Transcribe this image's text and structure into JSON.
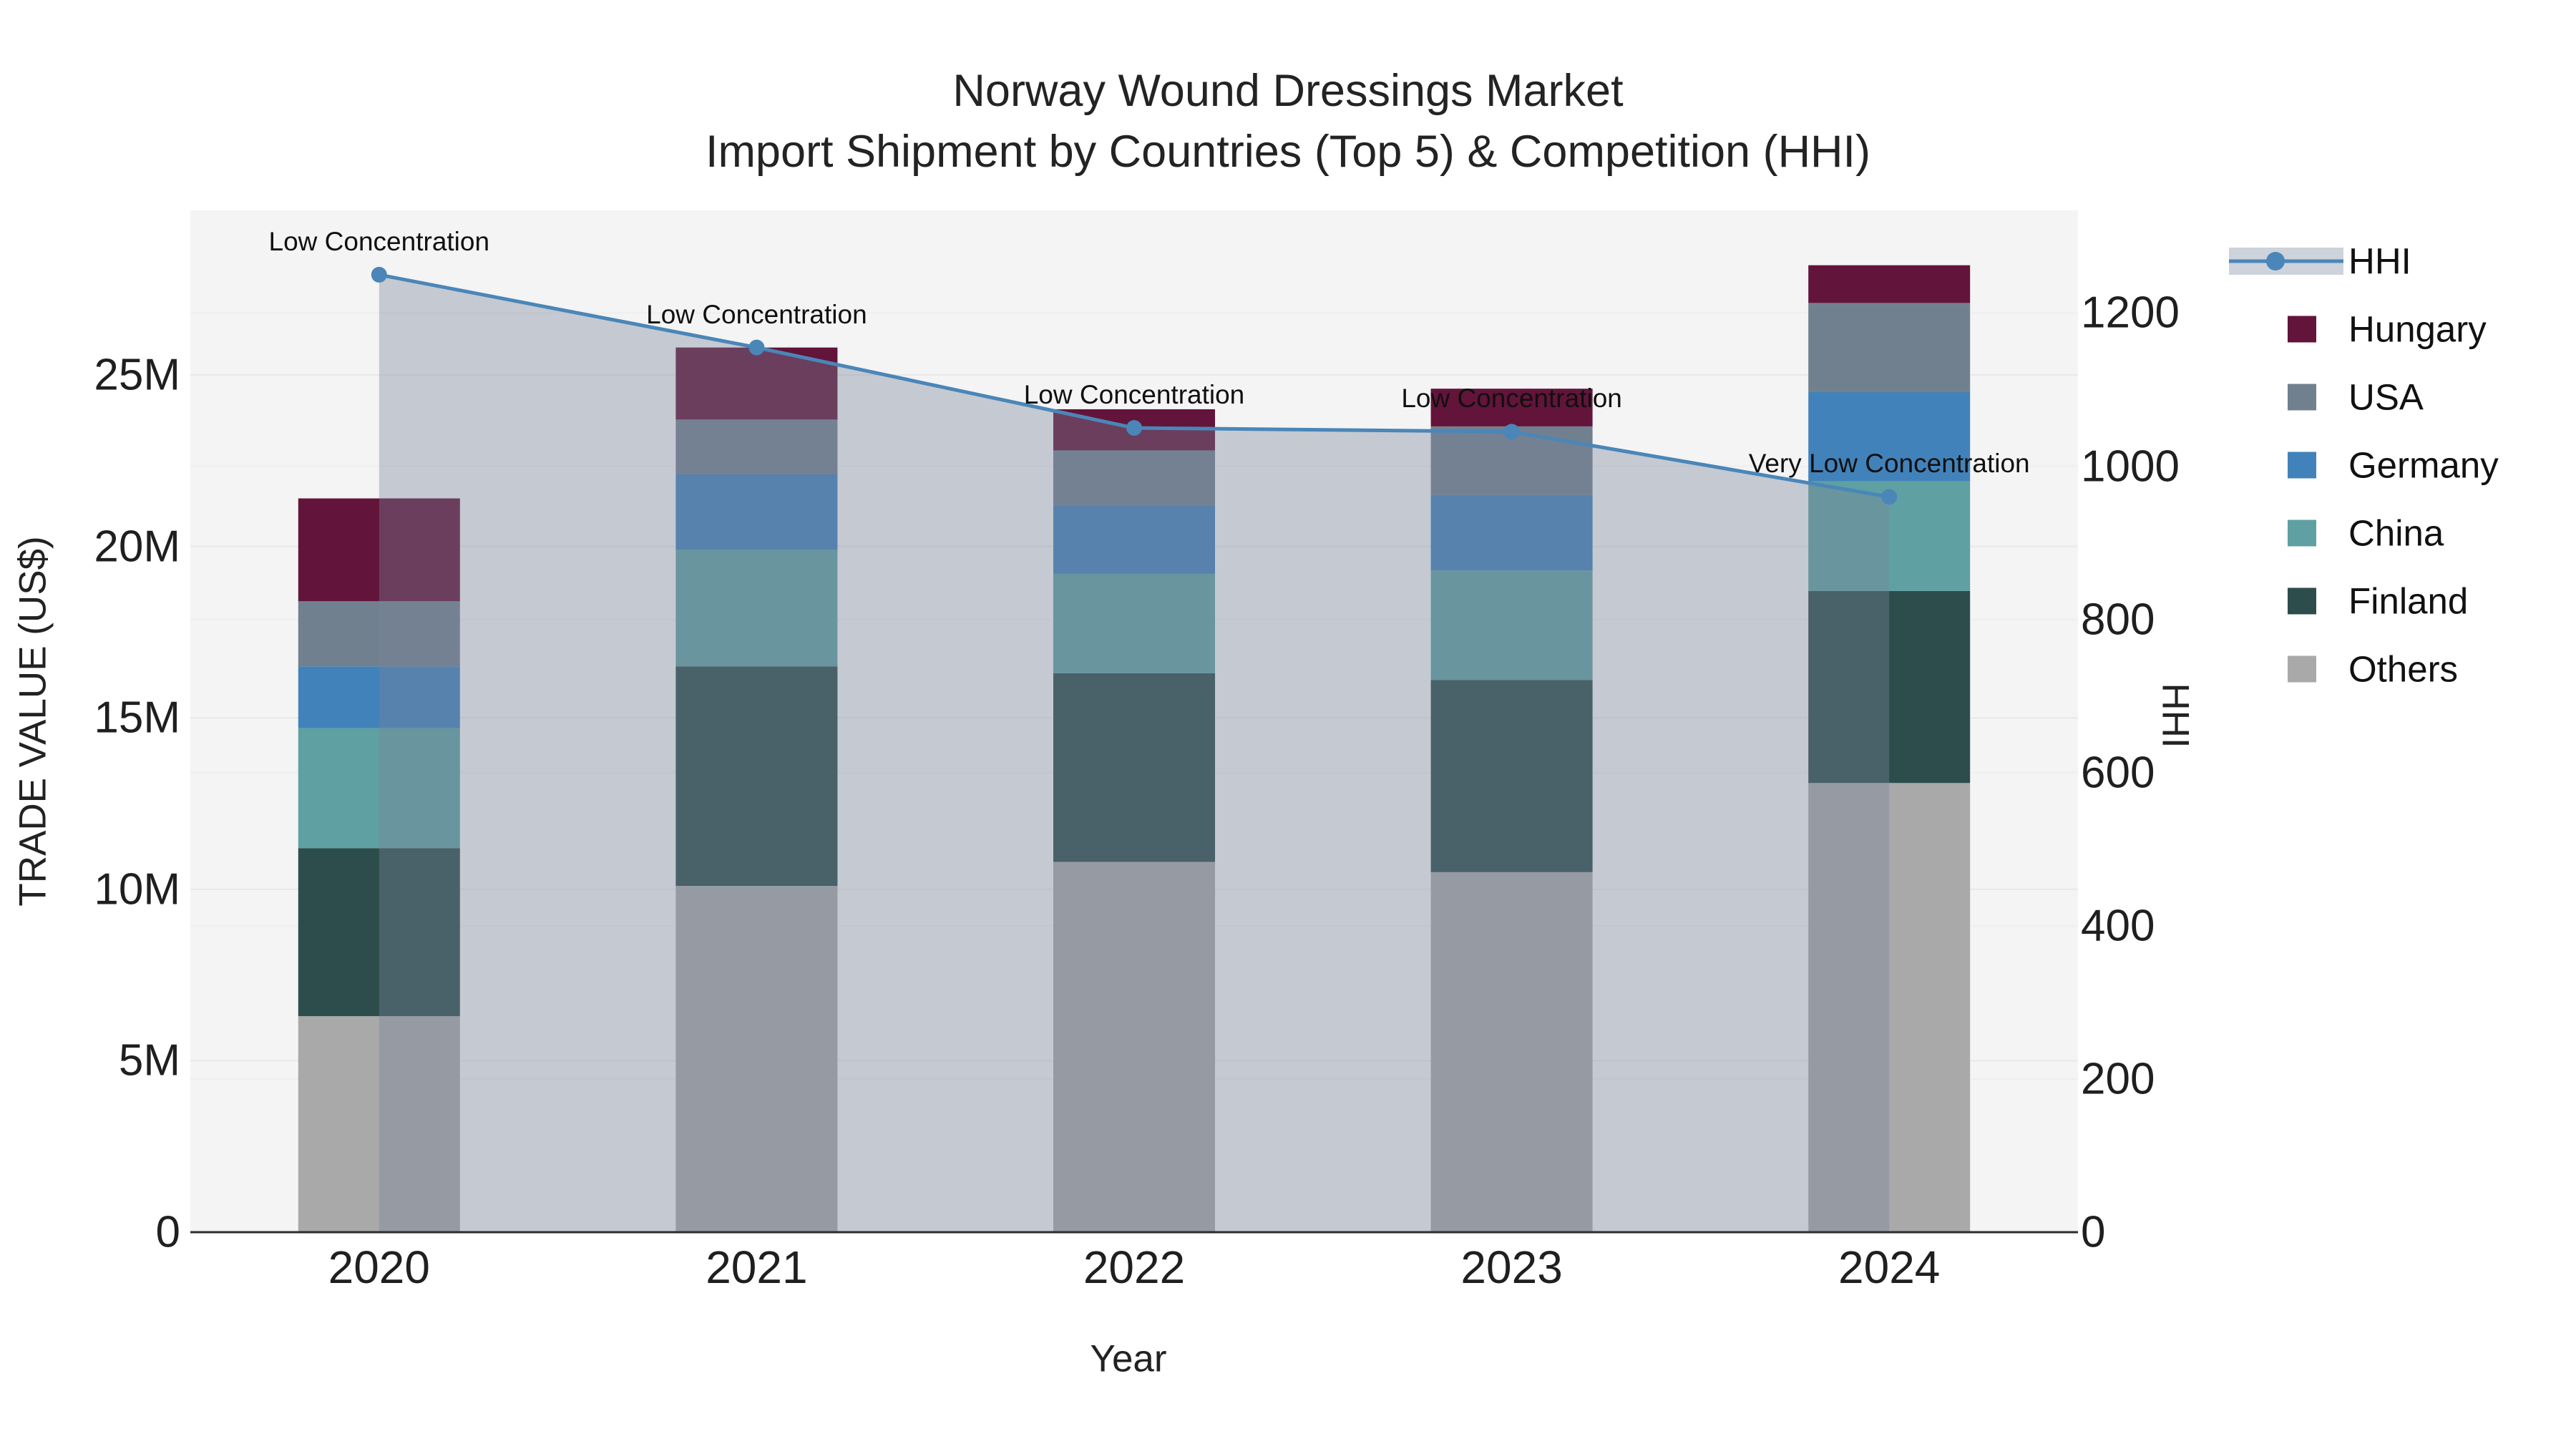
{
  "chart_data": {
    "type": "bar+line",
    "title": "Norway Wound Dressings Market",
    "subtitle": "Import Shipment by Countries (Top 5) & Competition (HHI)",
    "xlabel": "Year",
    "ylabel_left": "TRADE VALUE (US$)",
    "ylabel_right": "HHI",
    "categories": [
      "2020",
      "2021",
      "2022",
      "2023",
      "2024"
    ],
    "value_unit": "Million US$",
    "series": [
      {
        "name": "Others",
        "color": "#a9a9a9",
        "values": [
          6.3,
          10.1,
          10.8,
          10.5,
          13.1
        ]
      },
      {
        "name": "Finland",
        "color": "#2c4d4b",
        "values": [
          4.9,
          6.4,
          5.5,
          5.6,
          5.6
        ]
      },
      {
        "name": "China",
        "color": "#5fa0a2",
        "values": [
          3.5,
          3.4,
          2.9,
          3.2,
          3.2
        ]
      },
      {
        "name": "Germany",
        "color": "#4282ba",
        "values": [
          1.8,
          2.2,
          2.0,
          2.2,
          2.6
        ]
      },
      {
        "name": "USA",
        "color": "#71808f",
        "values": [
          1.9,
          1.6,
          1.6,
          2.0,
          2.6
        ]
      },
      {
        "name": "Hungary",
        "color": "#63143a",
        "values": [
          3.0,
          2.1,
          1.2,
          1.1,
          1.1
        ]
      }
    ],
    "line": {
      "name": "HHI",
      "color": "#4a86b8",
      "area_fill": "rgba(122,132,152,0.38)",
      "values": [
        1250,
        1155,
        1050,
        1045,
        960
      ]
    },
    "annotations": [
      "Low Concentration",
      "Low Concentration",
      "Low Concentration",
      "Low Concentration",
      "Very Low Concentration"
    ],
    "y_left": {
      "ticks": [
        "0",
        "5M",
        "10M",
        "15M",
        "20M",
        "25M"
      ],
      "tick_values": [
        0,
        5,
        10,
        15,
        20,
        25
      ],
      "axis_max": 29.8
    },
    "y_right": {
      "ticks": [
        "0",
        "200",
        "400",
        "600",
        "800",
        "1000",
        "1200"
      ],
      "tick_values": [
        0,
        200,
        400,
        600,
        800,
        1000,
        1200
      ],
      "axis_max": 1334
    },
    "legend": [
      "HHI",
      "Hungary",
      "USA",
      "Germany",
      "China",
      "Finland",
      "Others"
    ],
    "colors": {
      "plot_background": "#f4f4f4",
      "grid": "#e8e8e8",
      "grid_right": "#eeeeee",
      "axis_line": "#2d2d2d",
      "legend_band": "#cdd2db"
    }
  }
}
